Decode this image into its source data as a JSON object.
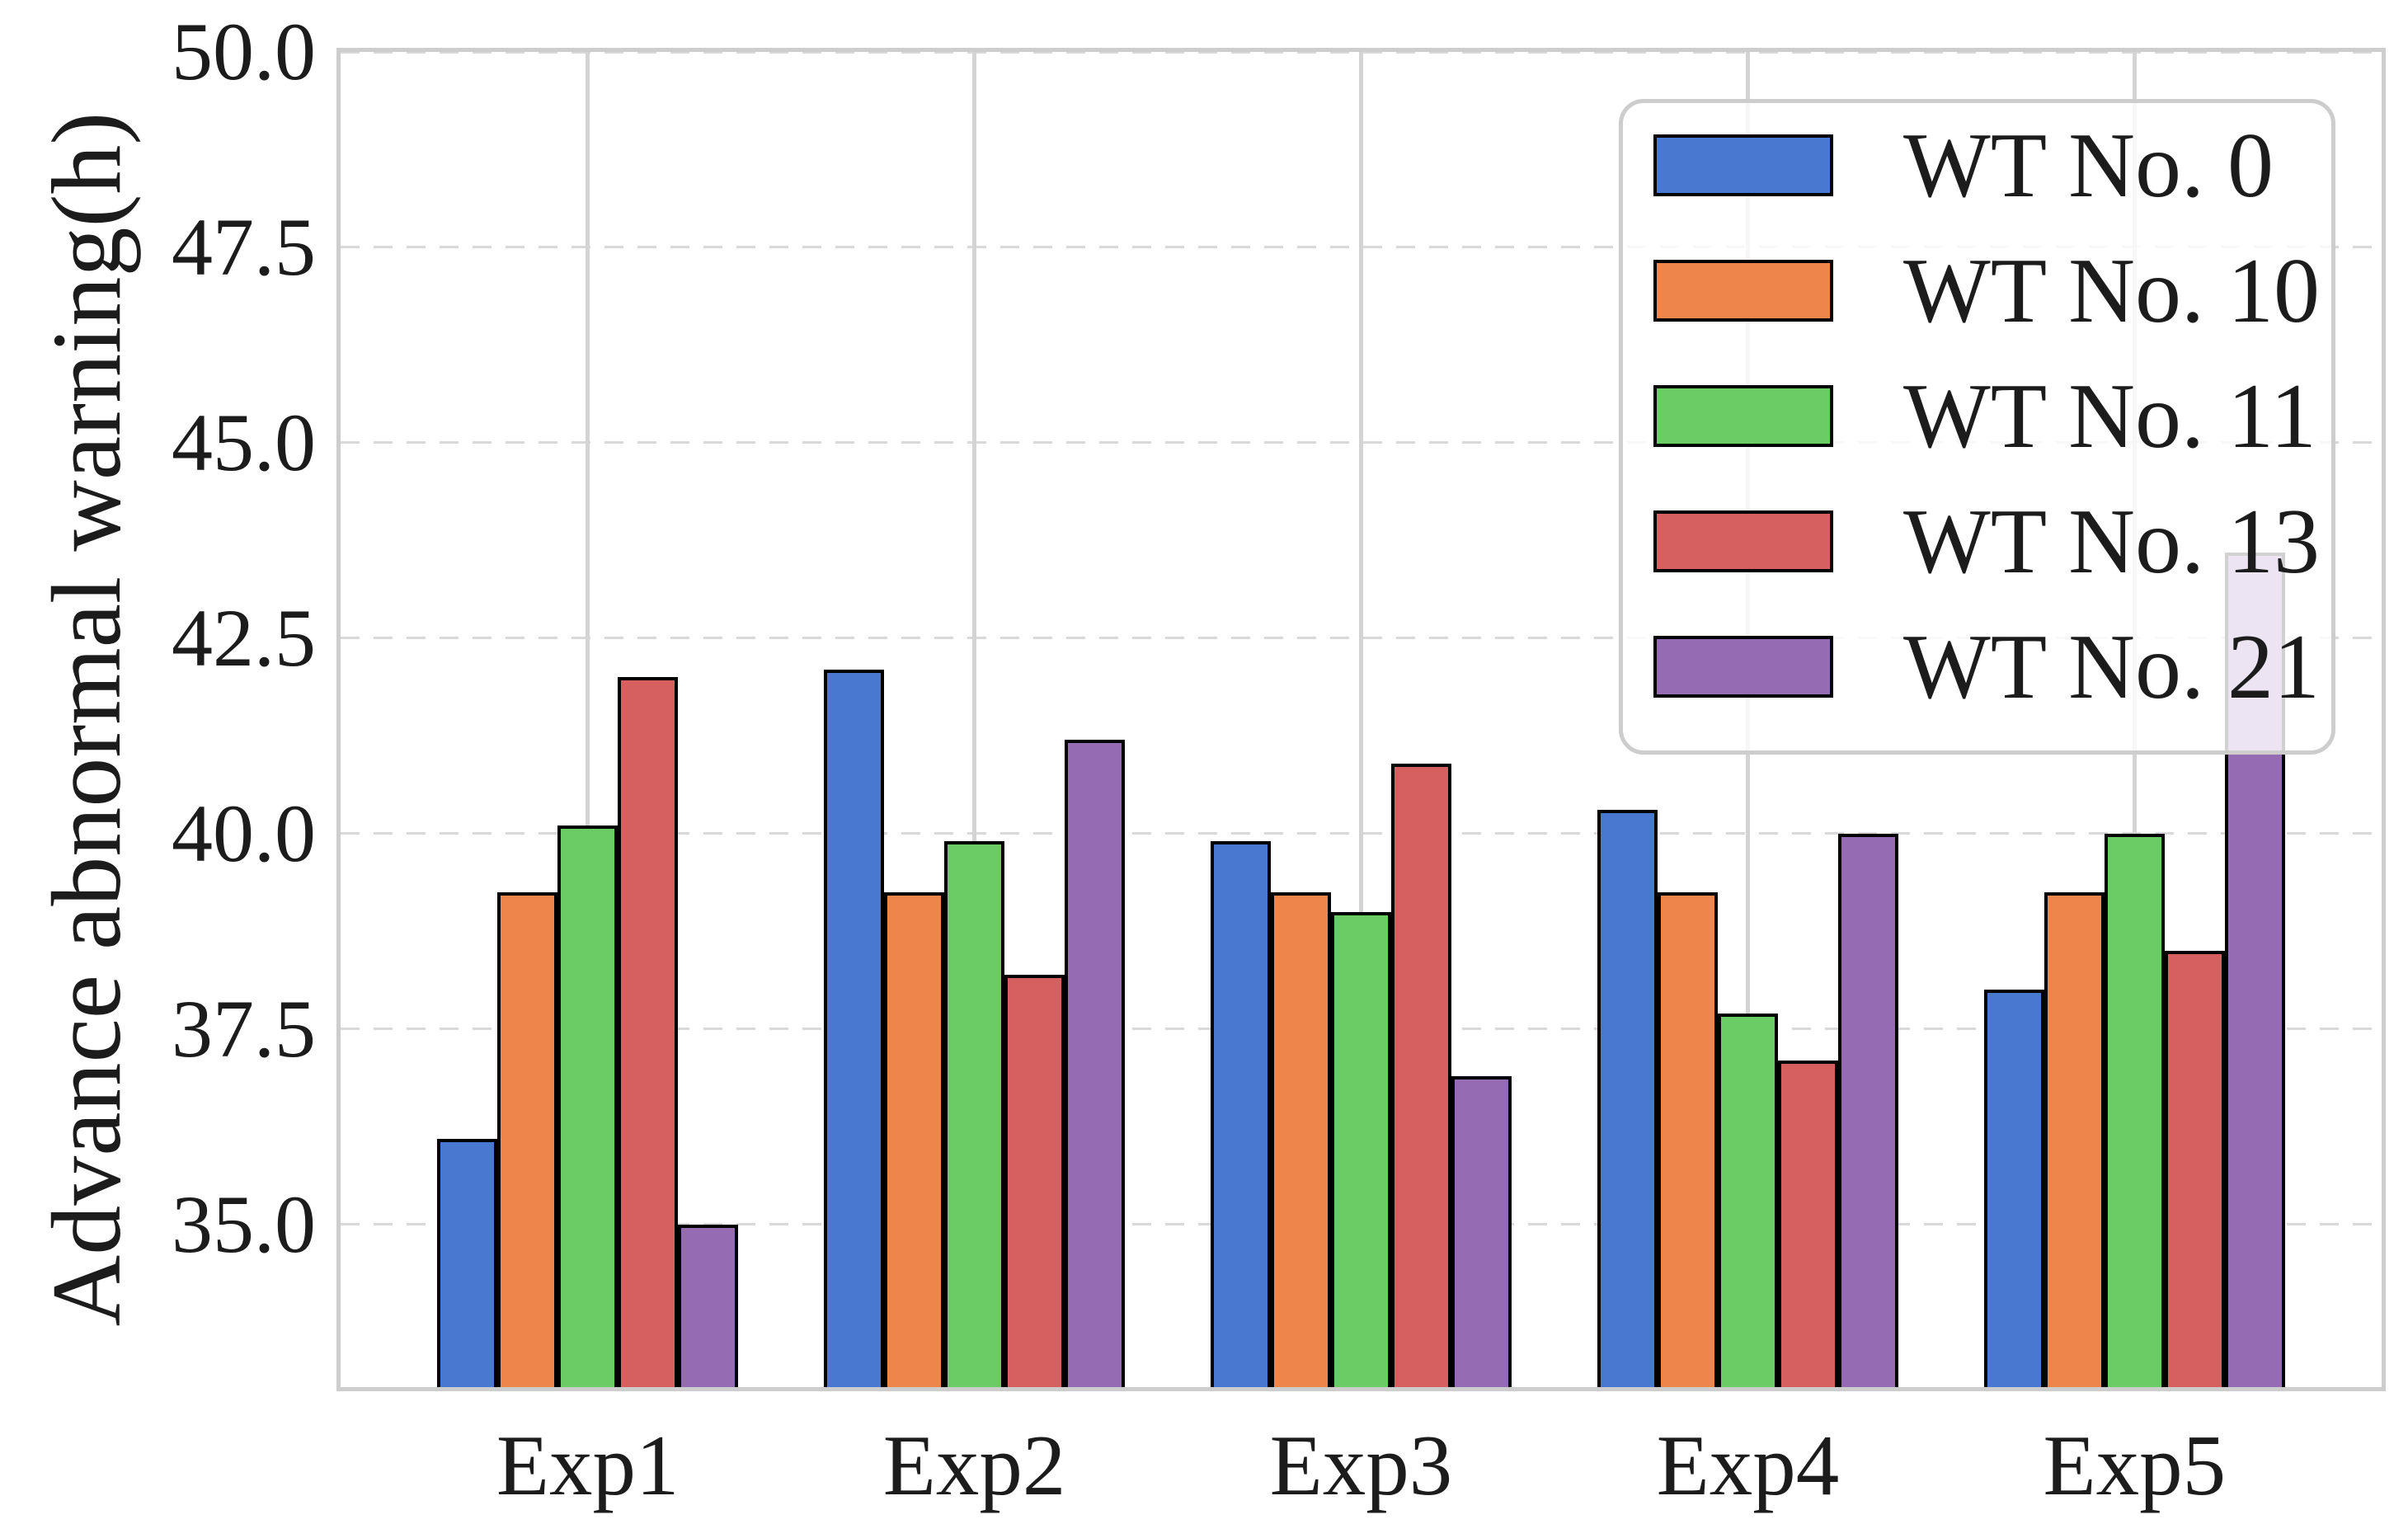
{
  "figure": {
    "background": "#ffffff",
    "text_color": "#1c1c1c",
    "spine_color": "#cdcdcd",
    "grid_color": "#d9d9d9"
  },
  "chart_data": {
    "type": "bar",
    "title": "",
    "categories": [
      "Exp1",
      "Exp2",
      "Exp3",
      "Exp4",
      "Exp5"
    ],
    "series": [
      {
        "name": "WT No. 0",
        "color": "#4878d0",
        "values": [
          36.1,
          42.1,
          39.9,
          40.3,
          38.0
        ]
      },
      {
        "name": "WT No. 10",
        "color": "#ee854a",
        "values": [
          39.25,
          39.25,
          39.25,
          39.25,
          39.25
        ]
      },
      {
        "name": "WT No. 11",
        "color": "#6acc64",
        "values": [
          40.1,
          39.9,
          39.0,
          37.7,
          40.0
        ]
      },
      {
        "name": "WT No. 13",
        "color": "#d65f5f",
        "values": [
          42.0,
          38.2,
          40.9,
          37.1,
          38.5
        ]
      },
      {
        "name": "WT No. 21",
        "color": "#956cb4",
        "values": [
          35.0,
          41.2,
          36.9,
          40.0,
          43.6
        ]
      }
    ],
    "xlabel": "",
    "ylabel": "Advance abnormal warning(h)",
    "yticks": [
      "50.0",
      "47.5",
      "45.0",
      "42.5",
      "40.0",
      "37.5",
      "35.0"
    ],
    "ytick_values": [
      50.0,
      47.5,
      45.0,
      42.5,
      40.0,
      37.5,
      35.0
    ],
    "ylim": [
      32.92,
      50.0
    ],
    "bar_edge_color": "#000000",
    "grid": {
      "horizontal_style": "dashed",
      "vertical_style": "solid",
      "grid_on": true
    },
    "legend_position": "upper-right"
  }
}
